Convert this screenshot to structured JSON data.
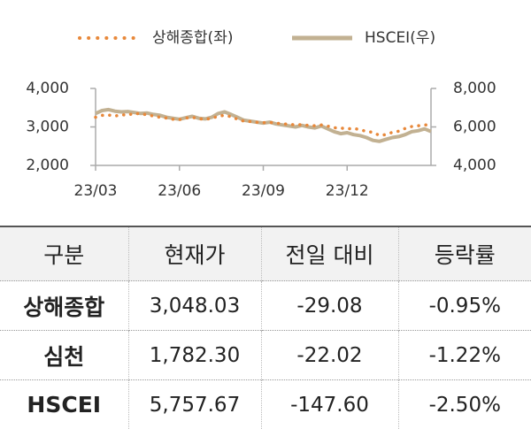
{
  "chart_data": {
    "type": "line",
    "categories": [
      "23/03",
      null,
      null,
      null,
      null,
      null,
      null,
      null,
      null,
      null,
      null,
      null,
      null,
      "23/06",
      null,
      null,
      null,
      null,
      null,
      null,
      null,
      null,
      null,
      null,
      null,
      null,
      "23/09",
      null,
      null,
      null,
      null,
      null,
      null,
      null,
      null,
      null,
      null,
      null,
      null,
      "23/12",
      null,
      null,
      null,
      null,
      null,
      null,
      null,
      null,
      null,
      null,
      null,
      null,
      null
    ],
    "series": [
      {
        "name": "상해종합(좌)",
        "color": "#e8883a",
        "style": "dotted",
        "values": [
          3250,
          3300,
          3310,
          3280,
          3320,
          3300,
          3360,
          3330,
          3320,
          3280,
          3250,
          3230,
          3200,
          3190,
          3230,
          3250,
          3210,
          3200,
          3220,
          3280,
          3300,
          3270,
          3200,
          3150,
          3140,
          3120,
          3110,
          3120,
          3100,
          3080,
          3070,
          3050,
          3060,
          3040,
          3030,
          3050,
          3020,
          2980,
          2970,
          2950,
          2960,
          2930,
          2880,
          2860,
          2780,
          2800,
          2860,
          2890,
          2960,
          3010,
          3030,
          3050,
          3050
        ]
      },
      {
        "name": "HSCEI(우)",
        "color": "#c2b192",
        "style": "solid",
        "axis": "y2",
        "values": [
          6700,
          6850,
          6900,
          6820,
          6780,
          6800,
          6750,
          6700,
          6720,
          6650,
          6600,
          6500,
          6450,
          6400,
          6480,
          6550,
          6450,
          6420,
          6500,
          6700,
          6780,
          6650,
          6500,
          6350,
          6300,
          6250,
          6200,
          6250,
          6150,
          6100,
          6050,
          6000,
          6080,
          6000,
          5950,
          6050,
          5900,
          5750,
          5650,
          5700,
          5600,
          5550,
          5450,
          5300,
          5250,
          5350,
          5450,
          5500,
          5600,
          5750,
          5800,
          5900,
          5760
        ]
      }
    ],
    "ylim": [
      2000,
      4000
    ],
    "yticks": [
      {
        "value": 2000,
        "label": "2,000"
      },
      {
        "value": 3000,
        "label": "3,000"
      },
      {
        "value": 4000,
        "label": "4,000"
      }
    ],
    "y2lim": [
      4000,
      8000
    ],
    "y2ticks": [
      {
        "value": 4000,
        "label": "4,000"
      },
      {
        "value": 6000,
        "label": "6,000"
      },
      {
        "value": 8000,
        "label": "8,000"
      }
    ],
    "legend": "top"
  },
  "table": {
    "header": [
      "구분",
      "현재가",
      "전일 대비",
      "등락률"
    ],
    "rows": [
      [
        "상해종합",
        "3,048.03",
        "-29.08",
        "-0.95%"
      ],
      [
        "심천",
        "1,782.30",
        "-22.02",
        "-1.22%"
      ],
      [
        "HSCEI",
        "5,757.67",
        "-147.60",
        "-2.50%"
      ]
    ]
  }
}
